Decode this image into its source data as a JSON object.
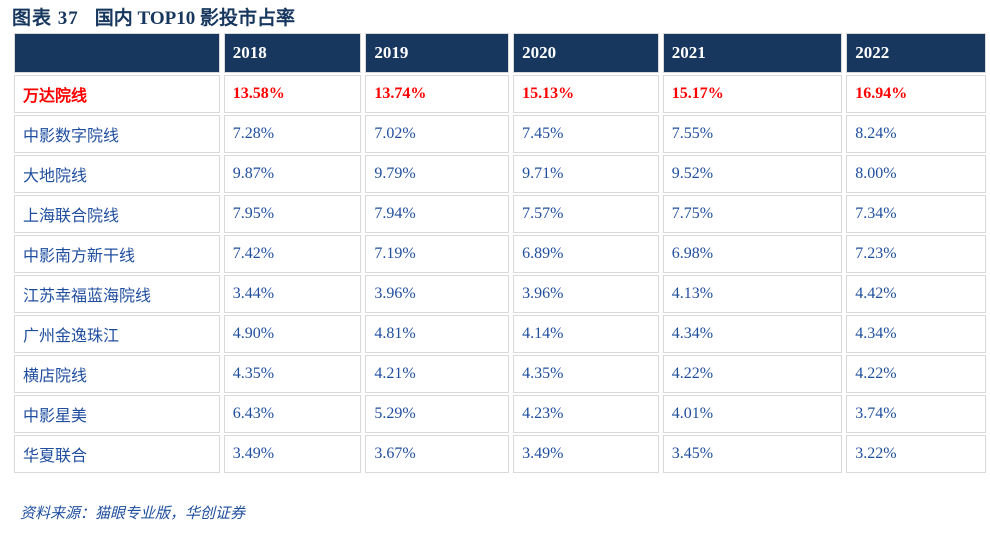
{
  "chart_data": {
    "type": "table",
    "figure_label": "图表 37",
    "title": "国内 TOP10 影投市占率",
    "columns": [
      "2018",
      "2019",
      "2020",
      "2021",
      "2022"
    ],
    "rows": [
      {
        "name": "万达院线",
        "highlight": true,
        "values": [
          "13.58%",
          "13.74%",
          "15.13%",
          "15.17%",
          "16.94%"
        ]
      },
      {
        "name": "中影数字院线",
        "highlight": false,
        "values": [
          "7.28%",
          "7.02%",
          "7.45%",
          "7.55%",
          "8.24%"
        ]
      },
      {
        "name": "大地院线",
        "highlight": false,
        "values": [
          "9.87%",
          "9.79%",
          "9.71%",
          "9.52%",
          "8.00%"
        ]
      },
      {
        "name": "上海联合院线",
        "highlight": false,
        "values": [
          "7.95%",
          "7.94%",
          "7.57%",
          "7.75%",
          "7.34%"
        ]
      },
      {
        "name": "中影南方新干线",
        "highlight": false,
        "values": [
          "7.42%",
          "7.19%",
          "6.89%",
          "6.98%",
          "7.23%"
        ]
      },
      {
        "name": "江苏幸福蓝海院线",
        "highlight": false,
        "values": [
          "3.44%",
          "3.96%",
          "3.96%",
          "4.13%",
          "4.42%"
        ]
      },
      {
        "name": "广州金逸珠江",
        "highlight": false,
        "values": [
          "4.90%",
          "4.81%",
          "4.14%",
          "4.34%",
          "4.34%"
        ]
      },
      {
        "name": "横店院线",
        "highlight": false,
        "values": [
          "4.35%",
          "4.21%",
          "4.35%",
          "4.22%",
          "4.22%"
        ]
      },
      {
        "name": "中影星美",
        "highlight": false,
        "values": [
          "6.43%",
          "5.29%",
          "4.23%",
          "4.01%",
          "3.74%"
        ]
      },
      {
        "name": "华夏联合",
        "highlight": false,
        "values": [
          "3.49%",
          "3.67%",
          "3.49%",
          "3.45%",
          "3.22%"
        ]
      }
    ],
    "source": "资料来源：猫眼专业版，华创证券"
  },
  "colors": {
    "header_bg": "#17375E",
    "title_text": "#17375E",
    "data_text": "#1F4E9F",
    "highlight_text": "#FF0000",
    "cell_border": "#D9D9D9"
  }
}
